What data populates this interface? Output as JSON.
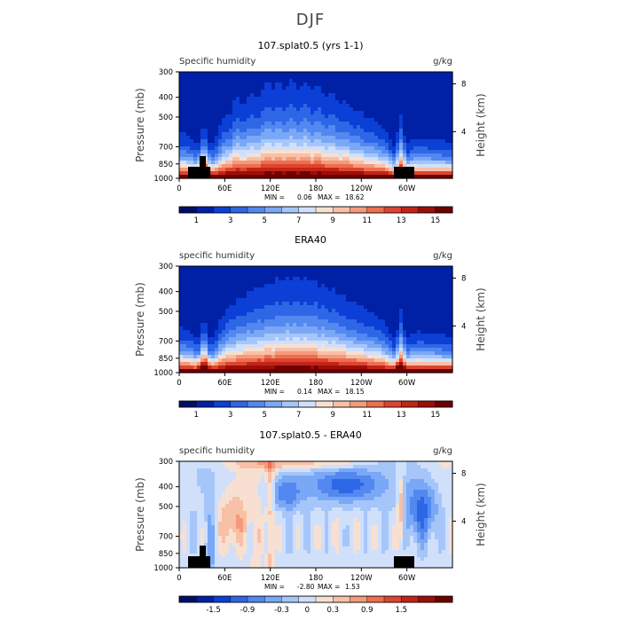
{
  "title": "DJF",
  "chart_data": [
    {
      "type": "heatmap",
      "title": "107.splat0.5 (yrs 1-1)",
      "field_label": "Specific humidity",
      "units": "g/kg",
      "ylabel": "Pressure (mb)",
      "ylabel_right": "Height (km)",
      "x_ticks": [
        "0",
        "60E",
        "120E",
        "180",
        "120W",
        "60W"
      ],
      "y_ticks": [
        "300",
        "400",
        "500",
        "700",
        "850",
        "1000"
      ],
      "right_ticks": [
        "8",
        "4"
      ],
      "stats": {
        "min_label": "MIN =",
        "min": "0.06",
        "max_label": "MAX =",
        "max": "18.62"
      },
      "colorbar": {
        "labels": [
          "1",
          "3",
          "5",
          "7",
          "9",
          "11",
          "13",
          "15"
        ],
        "colors": [
          "#000e69",
          "#0020a6",
          "#0b3fd6",
          "#2e67e6",
          "#5288f0",
          "#7aa8f6",
          "#a6c6fa",
          "#d0e0fb",
          "#f7e0d2",
          "#f7c0a7",
          "#f49a7a",
          "#ec6f4f",
          "#dd4530",
          "#c32418",
          "#9c0f08",
          "#6e0000"
        ]
      }
    },
    {
      "type": "heatmap",
      "title": "ERA40",
      "field_label": "specific humidity",
      "units": "g/kg",
      "ylabel": "Pressure (mb)",
      "ylabel_right": "Height (km)",
      "x_ticks": [
        "0",
        "60E",
        "120E",
        "180",
        "120W",
        "60W"
      ],
      "y_ticks": [
        "300",
        "400",
        "500",
        "700",
        "850",
        "1000"
      ],
      "right_ticks": [
        "8",
        "4"
      ],
      "stats": {
        "min_label": "MIN =",
        "min": "0.14",
        "max_label": "MAX =",
        "max": "18.15"
      },
      "colorbar": {
        "labels": [
          "1",
          "3",
          "5",
          "7",
          "9",
          "11",
          "13",
          "15"
        ],
        "colors": [
          "#000e69",
          "#0020a6",
          "#0b3fd6",
          "#2e67e6",
          "#5288f0",
          "#7aa8f6",
          "#a6c6fa",
          "#d0e0fb",
          "#f7e0d2",
          "#f7c0a7",
          "#f49a7a",
          "#ec6f4f",
          "#dd4530",
          "#c32418",
          "#9c0f08",
          "#6e0000"
        ]
      }
    },
    {
      "type": "heatmap",
      "title": "107.splat0.5 - ERA40",
      "field_label": "specific humidity",
      "units": "g/kg",
      "ylabel": "Pressure (mb)",
      "ylabel_right": "Height (km)",
      "x_ticks": [
        "0",
        "60E",
        "120E",
        "180",
        "120W",
        "60W"
      ],
      "y_ticks": [
        "300",
        "400",
        "500",
        "700",
        "850",
        "1000"
      ],
      "right_ticks": [
        "8",
        "4"
      ],
      "stats": {
        "min_label": "MIN =",
        "min": "-2.80",
        "max_label": "MAX =",
        "max": "1.53"
      },
      "colorbar": {
        "labels": [
          "-1.5",
          "-0.9",
          "-0.3",
          "0",
          "0.3",
          "0.9",
          "1.5"
        ],
        "colors": [
          "#000e69",
          "#0020a6",
          "#0b3fd6",
          "#2e67e6",
          "#5288f0",
          "#7aa8f6",
          "#a6c6fa",
          "#d0e0fb",
          "#f7e0d2",
          "#f7c0a7",
          "#f49a7a",
          "#ec6f4f",
          "#dd4530",
          "#c32418",
          "#9c0f08",
          "#6e0000"
        ]
      }
    }
  ]
}
